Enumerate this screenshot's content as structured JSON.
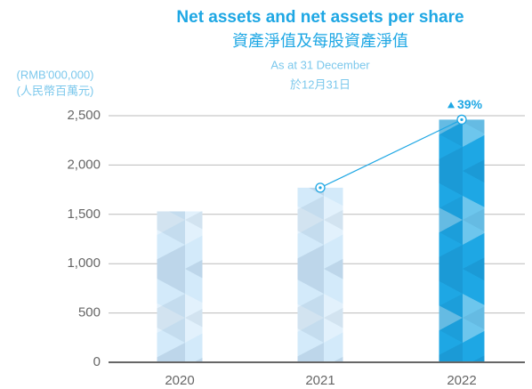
{
  "chart_data": {
    "type": "bar",
    "title": "Net assets and net assets per share",
    "title_zh": "資產淨值及每股資產淨值",
    "subtitle": "As at 31 December",
    "subtitle_zh": "於12月31日",
    "y_label": "(RMB'000,000)",
    "y_label_zh": "(人民幣百萬元)",
    "categories": [
      "2020",
      "2021",
      "2022"
    ],
    "values": [
      1530,
      1770,
      2460
    ],
    "colors": [
      "#d3eafa",
      "#d3eafa",
      "#1ea7e4"
    ],
    "ylim": [
      0,
      2500
    ],
    "yticks": [
      0,
      500,
      {
        "value": 1000,
        "label": "1,000"
      },
      {
        "value": 1500,
        "label": "1,500"
      },
      {
        "value": 2000,
        "label": "2,000"
      },
      {
        "value": 2500,
        "label": "2,500"
      }
    ],
    "grid": true,
    "annotation": {
      "text": "39%",
      "between": [
        "2021",
        "2022"
      ],
      "color": "#1ea7e4"
    }
  }
}
